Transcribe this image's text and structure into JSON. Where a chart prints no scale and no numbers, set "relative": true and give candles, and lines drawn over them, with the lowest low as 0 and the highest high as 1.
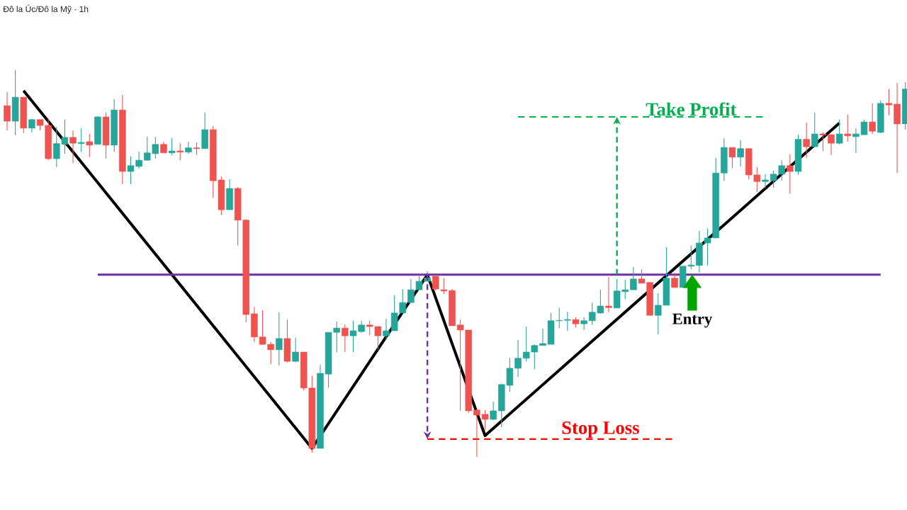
{
  "chart_data": {
    "type": "candlestick",
    "title": "Đô la Úc/Đô la Mỹ · 1h",
    "relative": true,
    "categories": [
      null,
      null,
      null,
      null,
      null,
      null,
      null,
      null,
      null,
      null,
      null,
      null,
      null,
      null,
      null,
      null,
      null,
      null,
      null,
      null,
      null,
      null,
      null,
      null,
      null,
      null,
      null,
      null,
      null,
      null,
      null,
      null,
      null,
      null,
      null,
      null,
      null,
      null,
      null,
      null,
      null,
      null,
      null,
      null,
      null,
      null,
      null,
      null,
      null,
      null,
      null,
      null,
      null,
      null,
      null,
      null,
      null,
      null,
      null,
      null,
      null,
      null,
      null,
      null,
      null,
      null,
      null,
      null,
      null,
      null,
      null,
      null,
      null,
      null,
      null,
      null,
      null,
      null,
      null,
      null,
      null,
      null,
      null,
      null,
      null,
      null,
      null,
      null,
      null,
      null,
      null,
      null,
      null,
      null,
      null,
      null,
      null,
      null,
      null,
      null,
      null,
      null,
      null,
      null,
      null,
      null,
      null,
      null,
      null,
      null
    ],
    "ohlc": [
      [
        0.908,
        0.943,
        0.844,
        0.868
      ],
      [
        0.868,
        1.0,
        0.832,
        0.93
      ],
      [
        0.93,
        0.93,
        0.837,
        0.85
      ],
      [
        0.85,
        0.874,
        0.839,
        0.872
      ],
      [
        0.872,
        0.872,
        0.844,
        0.857
      ],
      [
        0.857,
        0.875,
        0.767,
        0.771
      ],
      [
        0.771,
        0.853,
        0.749,
        0.81
      ],
      [
        0.808,
        0.872,
        0.784,
        0.826
      ],
      [
        0.826,
        0.844,
        0.76,
        0.811
      ],
      [
        0.81,
        0.85,
        0.788,
        0.813
      ],
      [
        0.815,
        0.835,
        0.775,
        0.806
      ],
      [
        0.808,
        0.881,
        0.808,
        0.879
      ],
      [
        0.879,
        0.89,
        0.771,
        0.806
      ],
      [
        0.806,
        0.925,
        0.788,
        0.897
      ],
      [
        0.897,
        0.936,
        0.705,
        0.738
      ],
      [
        0.738,
        0.777,
        0.705,
        0.753
      ],
      [
        0.751,
        0.789,
        0.745,
        0.767
      ],
      [
        0.767,
        0.828,
        0.767,
        0.786
      ],
      [
        0.784,
        0.828,
        0.771,
        0.808
      ],
      [
        0.808,
        0.815,
        0.786,
        0.786
      ],
      [
        0.786,
        0.824,
        0.78,
        0.791
      ],
      [
        0.791,
        0.811,
        0.767,
        0.788
      ],
      [
        0.788,
        0.815,
        0.784,
        0.799
      ],
      [
        0.799,
        0.813,
        0.78,
        0.797
      ],
      [
        0.797,
        0.89,
        0.797,
        0.846
      ],
      [
        0.846,
        0.855,
        0.67,
        0.714
      ],
      [
        0.716,
        0.725,
        0.625,
        0.639
      ],
      [
        0.639,
        0.718,
        0.639,
        0.694
      ],
      [
        0.694,
        0.698,
        0.546,
        0.612
      ],
      [
        0.612,
        0.615,
        0.348,
        0.368
      ],
      [
        0.37,
        0.388,
        0.297,
        0.31
      ],
      [
        0.31,
        0.379,
        0.289,
        0.291
      ],
      [
        0.291,
        0.297,
        0.24,
        0.277
      ],
      [
        0.277,
        0.374,
        0.236,
        0.306
      ],
      [
        0.306,
        0.355,
        0.245,
        0.247
      ],
      [
        0.247,
        0.308,
        0.245,
        0.271
      ],
      [
        0.271,
        0.271,
        0.172,
        0.178
      ],
      [
        0.178,
        0.209,
        0.011,
        0.022
      ],
      [
        0.022,
        0.238,
        0.022,
        0.216
      ],
      [
        0.214,
        0.322,
        0.179,
        0.322
      ],
      [
        0.322,
        0.35,
        0.271,
        0.333
      ],
      [
        0.333,
        0.342,
        0.271,
        0.313
      ],
      [
        0.313,
        0.352,
        0.271,
        0.326
      ],
      [
        0.324,
        0.352,
        0.321,
        0.341
      ],
      [
        0.341,
        0.352,
        0.315,
        0.337
      ],
      [
        0.337,
        0.337,
        0.277,
        0.313
      ],
      [
        0.313,
        0.357,
        0.302,
        0.326
      ],
      [
        0.326,
        0.418,
        0.326,
        0.372
      ],
      [
        0.372,
        0.434,
        0.372,
        0.399
      ],
      [
        0.399,
        0.46,
        0.399,
        0.432
      ],
      [
        0.432,
        0.471,
        0.432,
        0.454
      ],
      [
        0.454,
        0.48,
        0.454,
        0.463
      ],
      [
        0.467,
        0.471,
        0.43,
        0.434
      ],
      [
        0.432,
        0.462,
        0.421,
        0.429
      ],
      [
        0.43,
        0.434,
        0.339,
        0.339
      ],
      [
        0.341,
        0.355,
        0.119,
        0.328
      ],
      [
        0.328,
        0.328,
        0.114,
        0.119
      ],
      [
        0.121,
        0.123,
        0.0,
        0.108
      ],
      [
        0.11,
        0.121,
        0.07,
        0.097
      ],
      [
        0.097,
        0.143,
        0.095,
        0.119
      ],
      [
        0.119,
        0.189,
        0.077,
        0.187
      ],
      [
        0.185,
        0.256,
        0.168,
        0.229
      ],
      [
        0.229,
        0.302,
        0.207,
        0.255
      ],
      [
        0.255,
        0.337,
        0.247,
        0.271
      ],
      [
        0.271,
        0.291,
        0.227,
        0.288
      ],
      [
        0.288,
        0.332,
        0.288,
        0.293
      ],
      [
        0.291,
        0.372,
        0.291,
        0.352
      ],
      [
        0.352,
        0.385,
        0.333,
        0.353
      ],
      [
        0.353,
        0.375,
        0.326,
        0.355
      ],
      [
        0.355,
        0.361,
        0.335,
        0.344
      ],
      [
        0.344,
        0.361,
        0.328,
        0.352
      ],
      [
        0.352,
        0.399,
        0.341,
        0.374
      ],
      [
        0.372,
        0.432,
        0.37,
        0.39
      ],
      [
        0.39,
        0.465,
        0.374,
        0.386
      ],
      [
        0.385,
        0.46,
        0.385,
        0.429
      ],
      [
        0.427,
        0.458,
        0.408,
        0.432
      ],
      [
        0.432,
        0.491,
        0.432,
        0.46
      ],
      [
        0.46,
        0.485,
        0.449,
        0.449
      ],
      [
        0.451,
        0.451,
        0.366,
        0.366
      ],
      [
        0.366,
        0.423,
        0.317,
        0.392
      ],
      [
        0.392,
        0.542,
        0.392,
        0.462
      ],
      [
        0.462,
        0.476,
        0.438,
        0.438
      ],
      [
        0.438,
        0.493,
        0.438,
        0.493
      ],
      [
        0.493,
        0.546,
        0.485,
        0.496
      ],
      [
        0.495,
        0.584,
        0.476,
        0.553
      ],
      [
        0.553,
        0.59,
        0.495,
        0.566
      ],
      [
        0.566,
        0.773,
        0.566,
        0.734
      ],
      [
        0.734,
        0.824,
        0.714,
        0.8
      ],
      [
        0.8,
        0.8,
        0.747,
        0.775
      ],
      [
        0.775,
        0.819,
        0.751,
        0.797
      ],
      [
        0.797,
        0.797,
        0.718,
        0.729
      ],
      [
        0.729,
        0.749,
        0.685,
        0.712
      ],
      [
        0.712,
        0.731,
        0.694,
        0.716
      ],
      [
        0.714,
        0.74,
        0.696,
        0.731
      ],
      [
        0.731,
        0.767,
        0.714,
        0.753
      ],
      [
        0.753,
        0.782,
        0.681,
        0.738
      ],
      [
        0.738,
        0.833,
        0.729,
        0.821
      ],
      [
        0.821,
        0.864,
        0.773,
        0.802
      ],
      [
        0.802,
        0.89,
        0.802,
        0.835
      ],
      [
        0.835,
        0.839,
        0.791,
        0.832
      ],
      [
        0.833,
        0.833,
        0.78,
        0.811
      ],
      [
        0.811,
        0.872,
        0.808,
        0.835
      ],
      [
        0.835,
        0.885,
        0.815,
        0.83
      ],
      [
        0.828,
        0.85,
        0.786,
        0.835
      ],
      [
        0.833,
        0.872,
        0.833,
        0.866
      ],
      [
        0.866,
        0.914,
        0.835,
        0.842
      ],
      [
        0.839,
        0.921,
        0.837,
        0.914
      ],
      [
        0.914,
        0.951,
        0.883,
        0.91
      ],
      [
        0.912,
        0.967,
        0.734,
        0.861
      ],
      [
        0.861,
        0.969,
        0.846,
        0.951
      ]
    ],
    "colors": [
      "#ef5350",
      "#26a69a",
      "#ef5350",
      "#26a69a",
      "#ef5350",
      "#ef5350",
      "#26a69a",
      "#26a69a",
      "#ef5350",
      "#26a69a",
      "#ef5350",
      "#26a69a",
      "#ef5350",
      "#26a69a",
      "#ef5350",
      "#26a69a",
      "#26a69a",
      "#26a69a",
      "#26a69a",
      "#ef5350",
      "#26a69a",
      "#ef5350",
      "#26a69a",
      "#ef5350",
      "#26a69a",
      "#ef5350",
      "#ef5350",
      "#26a69a",
      "#ef5350",
      "#ef5350",
      "#ef5350",
      "#ef5350",
      "#ef5350",
      "#26a69a",
      "#ef5350",
      "#26a69a",
      "#ef5350",
      "#ef5350",
      "#26a69a",
      "#26a69a",
      "#26a69a",
      "#ef5350",
      "#26a69a",
      "#26a69a",
      "#ef5350",
      "#ef5350",
      "#26a69a",
      "#26a69a",
      "#26a69a",
      "#26a69a",
      "#26a69a",
      "#26a69a",
      "#ef5350",
      "#ef5350",
      "#ef5350",
      "#ef5350",
      "#ef5350",
      "#ef5350",
      "#ef5350",
      "#26a69a",
      "#26a69a",
      "#26a69a",
      "#26a69a",
      "#26a69a",
      "#26a69a",
      "#26a69a",
      "#26a69a",
      "#26a69a",
      "#26a69a",
      "#ef5350",
      "#26a69a",
      "#26a69a",
      "#26a69a",
      "#ef5350",
      "#26a69a",
      "#26a69a",
      "#26a69a",
      "#ef5350",
      "#ef5350",
      "#26a69a",
      "#26a69a",
      "#ef5350",
      "#26a69a",
      "#26a69a",
      "#26a69a",
      "#26a69a",
      "#26a69a",
      "#26a69a",
      "#ef5350",
      "#26a69a",
      "#ef5350",
      "#ef5350",
      "#26a69a",
      "#26a69a",
      "#26a69a",
      "#ef5350",
      "#26a69a",
      "#ef5350",
      "#26a69a",
      "#ef5350",
      "#ef5350",
      "#26a69a",
      "#ef5350",
      "#26a69a",
      "#26a69a",
      "#ef5350",
      "#26a69a",
      "#ef5350",
      "#ef5350",
      "#26a69a"
    ],
    "series": [
      {
        "type": "line",
        "color": "#000000",
        "values": [
          null,
          null,
          0.947,
          null,
          null,
          null,
          null,
          null,
          null,
          null,
          null,
          null,
          null,
          null,
          null,
          null,
          null,
          null,
          null,
          null,
          null,
          null,
          null,
          null,
          null,
          null,
          null,
          null,
          null,
          null,
          null,
          null,
          null,
          null,
          null,
          null,
          null,
          0.022,
          null,
          null,
          null,
          null,
          null,
          null,
          null,
          null,
          null,
          null,
          null,
          null,
          null,
          0.471,
          null,
          null,
          null,
          null,
          null,
          null,
          0.055,
          null,
          null,
          null,
          null,
          null,
          null,
          null,
          null,
          null,
          null,
          null,
          null,
          null,
          null,
          null,
          null,
          null,
          null,
          null,
          null,
          null,
          null,
          null,
          null,
          null,
          null,
          null,
          null,
          null,
          null,
          null,
          null,
          null,
          null,
          null,
          null,
          null,
          null,
          null,
          null,
          null,
          null,
          0.863,
          null,
          null,
          null,
          null,
          null,
          null,
          null,
          null
        ]
      },
      {
        "type": "line",
        "color": "#7030a0",
        "values": [
          null,
          null,
          null,
          null,
          null,
          null,
          null,
          null,
          null,
          null,
          null,
          0.471,
          null,
          null,
          null,
          null,
          null,
          null,
          null,
          null,
          null,
          null,
          null,
          null,
          null,
          null,
          null,
          null,
          null,
          null,
          null,
          null,
          null,
          null,
          null,
          null,
          null,
          null,
          null,
          null,
          null,
          null,
          null,
          null,
          null,
          null,
          null,
          null,
          null,
          null,
          null,
          null,
          null,
          null,
          null,
          null,
          null,
          null,
          null,
          null,
          null,
          null,
          null,
          null,
          null,
          null,
          null,
          null,
          null,
          null,
          null,
          null,
          null,
          null,
          null,
          null,
          null,
          null,
          null,
          null,
          null,
          null,
          null,
          null,
          null,
          null,
          null,
          null,
          null,
          null,
          null,
          null,
          null,
          null,
          null,
          null,
          null,
          null,
          null,
          null,
          null,
          null,
          null,
          null,
          null,
          null,
          0.471,
          null,
          null,
          null
        ]
      },
      {
        "type": "line",
        "name": "Take Profit",
        "color": "#00b050",
        "line_style": "dashed",
        "values": [
          null,
          null,
          null,
          null,
          null,
          null,
          null,
          null,
          null,
          null,
          null,
          null,
          null,
          null,
          null,
          null,
          null,
          null,
          null,
          null,
          null,
          null,
          null,
          null,
          null,
          null,
          null,
          null,
          null,
          null,
          null,
          null,
          null,
          null,
          null,
          null,
          null,
          null,
          null,
          null,
          null,
          null,
          null,
          null,
          null,
          null,
          null,
          null,
          null,
          null,
          null,
          null,
          null,
          null,
          null,
          null,
          null,
          null,
          null,
          null,
          null,
          null,
          0.879,
          null,
          null,
          null,
          null,
          null,
          null,
          null,
          null,
          null,
          null,
          null,
          null,
          null,
          null,
          null,
          null,
          null,
          null,
          null,
          null,
          null,
          null,
          null,
          null,
          null,
          null,
          null,
          null,
          null,
          0.879,
          null,
          null,
          null,
          null,
          null,
          null,
          null,
          null,
          null,
          null,
          null,
          null,
          null,
          null,
          null,
          null,
          null
        ]
      },
      {
        "type": "line",
        "name": "Stop Loss",
        "color": "#ff0000",
        "line_style": "dashed",
        "values": [
          null,
          null,
          null,
          null,
          null,
          null,
          null,
          null,
          null,
          null,
          null,
          null,
          null,
          null,
          null,
          null,
          null,
          null,
          null,
          null,
          null,
          null,
          null,
          null,
          null,
          null,
          null,
          null,
          null,
          null,
          null,
          null,
          null,
          null,
          null,
          null,
          null,
          null,
          null,
          null,
          null,
          null,
          null,
          null,
          null,
          null,
          null,
          null,
          null,
          null,
          null,
          0.046,
          null,
          null,
          null,
          null,
          null,
          null,
          null,
          null,
          null,
          null,
          null,
          null,
          null,
          null,
          null,
          null,
          null,
          null,
          null,
          null,
          null,
          null,
          null,
          null,
          null,
          null,
          null,
          null,
          null,
          0.046,
          null,
          null,
          null,
          null,
          null,
          null,
          null,
          null,
          null,
          null,
          null,
          null,
          null,
          null,
          null,
          null,
          null,
          null,
          null,
          null,
          null,
          null,
          null,
          null,
          null,
          null,
          null,
          null
        ]
      }
    ],
    "annotations": [
      "Entry"
    ]
  }
}
